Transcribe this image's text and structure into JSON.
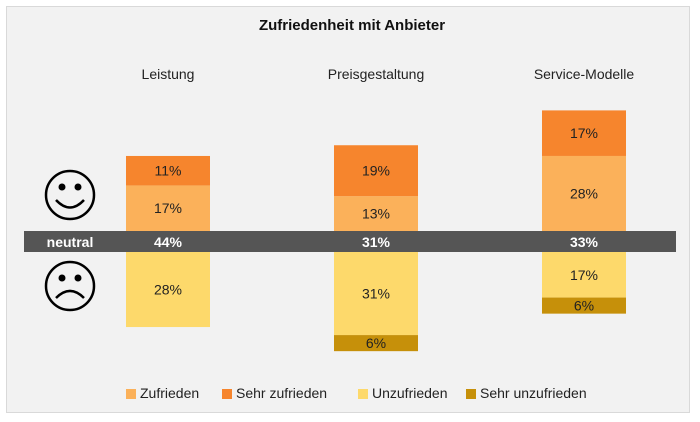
{
  "chart_data": {
    "type": "bar",
    "title": "Zufriedenheit mit Anbieter",
    "categories": [
      "Leistung",
      "Preisgestaltung",
      "Service-Modelle"
    ],
    "neutral_label": "neutral",
    "neutral": [
      44,
      31,
      33
    ],
    "neutral_labels": [
      "44%",
      "31%",
      "33%"
    ],
    "positive_series": [
      {
        "name": "Zufrieden",
        "values": [
          17,
          13,
          28
        ],
        "labels": [
          "17%",
          "13%",
          "28%"
        ],
        "color": "#fbb15a"
      },
      {
        "name": "Sehr zufrieden",
        "values": [
          11,
          19,
          17
        ],
        "labels": [
          "11%",
          "19%",
          "17%"
        ],
        "color": "#f6852d"
      }
    ],
    "negative_series": [
      {
        "name": "Unzufrieden",
        "values": [
          28,
          31,
          17
        ],
        "labels": [
          "28%",
          "31%",
          "17%"
        ],
        "color": "#fdd96b"
      },
      {
        "name": "Sehr unzufrieden",
        "values": [
          0,
          6,
          6
        ],
        "labels": [
          "",
          "6%",
          "6%"
        ],
        "color": "#c6900a"
      }
    ],
    "legend": [
      "Zufrieden",
      "Sehr zufrieden",
      "Unzufrieden",
      "Sehr unzufrieden"
    ],
    "legend_position": "bottom",
    "neutral_bar_color": "#555555",
    "icons": [
      "happy-face-icon",
      "sad-face-icon"
    ]
  }
}
